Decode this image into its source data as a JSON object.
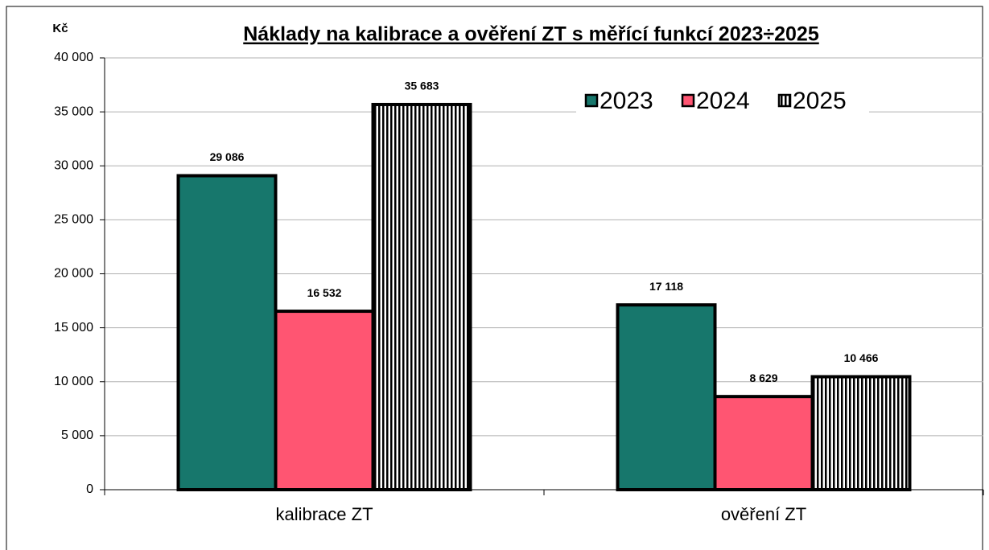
{
  "chart_data": {
    "type": "bar",
    "title": "Náklady na kalibrace a ověření ZT s měřící funkcí 2023÷2025",
    "y_label": "Kč",
    "categories": [
      "kalibrace ZT",
      "ověření ZT"
    ],
    "series": [
      {
        "name": "2023",
        "color": "#17776c",
        "values": [
          29086,
          17118
        ],
        "value_labels": [
          "29 086",
          "17 118"
        ]
      },
      {
        "name": "2024",
        "color": "#ff5572",
        "values": [
          16532,
          8629
        ],
        "value_labels": [
          "16 532",
          "8 629"
        ]
      },
      {
        "name": "2025",
        "color": "#000000",
        "hatch": "vertical",
        "values": [
          35683,
          10466
        ],
        "value_labels": [
          "35 683",
          "10 466"
        ]
      }
    ],
    "ylim": [
      0,
      40000
    ],
    "yticks": [
      {
        "value": 0,
        "label": "0"
      },
      {
        "value": 5000,
        "label": "5 000"
      },
      {
        "value": 10000,
        "label": "10 000"
      },
      {
        "value": 15000,
        "label": "15 000"
      },
      {
        "value": 20000,
        "label": "20 000"
      },
      {
        "value": 25000,
        "label": "25 000"
      },
      {
        "value": 30000,
        "label": "30 000"
      },
      {
        "value": 35000,
        "label": "35 000"
      },
      {
        "value": 40000,
        "label": "40 000"
      }
    ],
    "grid": true
  }
}
